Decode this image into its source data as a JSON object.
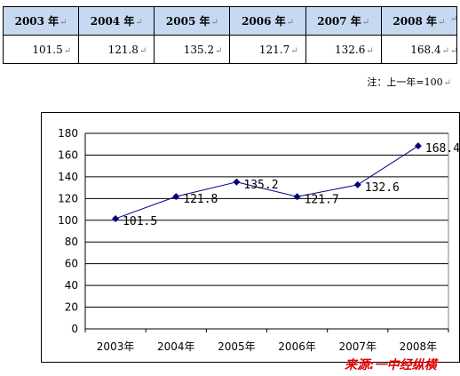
{
  "table": {
    "headers": [
      "2003 年",
      "2004 年",
      "2005 年",
      "2006 年",
      "2007 年",
      "2008 年"
    ],
    "values": [
      "101.5",
      "121.8",
      "135.2",
      "121.7",
      "132.6",
      "168.4"
    ],
    "paragraph_mark": "↵"
  },
  "note": "注：上一年=100",
  "source": "来源:一中经纵横",
  "chart_data": {
    "type": "line",
    "categories": [
      "2003年",
      "2004年",
      "2005年",
      "2006年",
      "2007年",
      "2008年"
    ],
    "series": [
      {
        "values": [
          101.5,
          121.8,
          135.2,
          121.7,
          132.6,
          168.4
        ],
        "labels": [
          "101.5",
          "121.8",
          "135.2",
          "121.7",
          "132.6",
          "168.4"
        ],
        "color": "#000080"
      }
    ],
    "ylim": [
      0,
      180
    ],
    "yticks": [
      "0",
      "20",
      "40",
      "60",
      "80",
      "100",
      "120",
      "140",
      "160",
      "180"
    ],
    "grid": true,
    "title": "",
    "xlabel": "",
    "ylabel": ""
  }
}
